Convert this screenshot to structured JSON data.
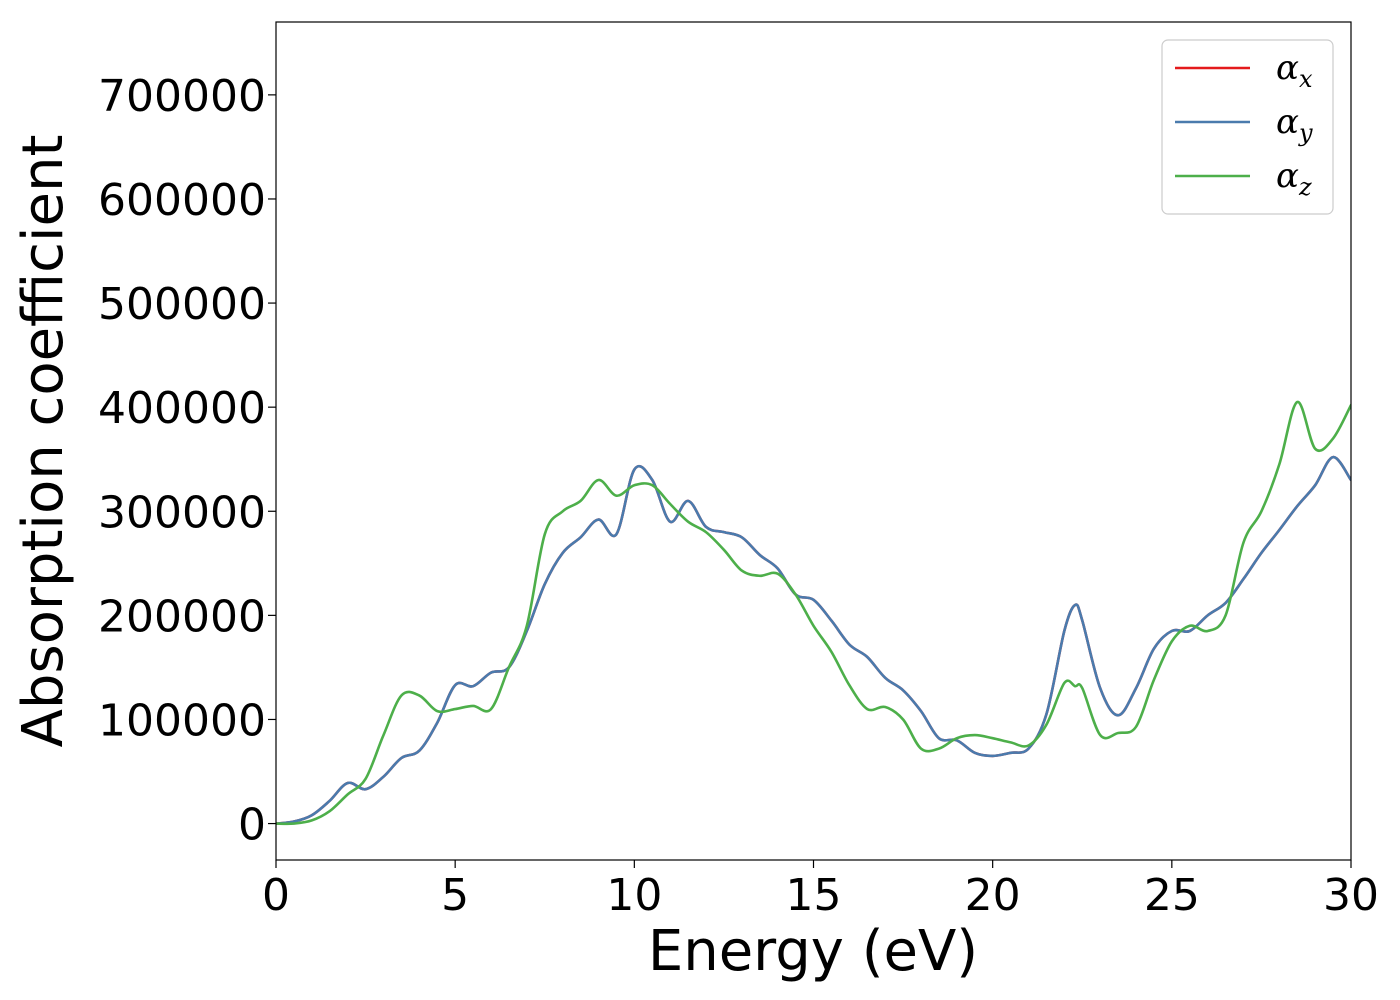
{
  "chart_data": {
    "type": "line",
    "xlabel": "Energy (eV)",
    "ylabel": "Absorption coefficient",
    "xlim": [
      0,
      30
    ],
    "ylim": [
      -35000,
      770000
    ],
    "xticks": [
      "0",
      "5",
      "10",
      "15",
      "20",
      "25",
      "30"
    ],
    "yticks": [
      "0",
      "100000",
      "200000",
      "300000",
      "400000",
      "500000",
      "600000",
      "700000"
    ],
    "grid": false,
    "legend_position": "top-right",
    "series": [
      {
        "name": "αx",
        "symbol": "α",
        "subscript": "x",
        "color": "#e41a1c",
        "x": [
          0,
          0.5,
          1,
          1.5,
          2,
          2.5,
          3,
          3.5,
          4,
          4.5,
          5,
          5.5,
          6,
          6.5,
          7,
          7.5,
          8,
          8.5,
          9,
          9.5,
          10,
          10.5,
          11,
          11.5,
          12,
          12.5,
          13,
          13.5,
          14,
          14.5,
          15,
          15.5,
          16,
          16.5,
          17,
          17.5,
          18,
          18.5,
          19,
          19.5,
          20,
          20.5,
          21,
          21.5,
          22,
          22.3,
          22.5,
          23,
          23.5,
          24,
          24.5,
          25,
          25.5,
          26,
          26.5,
          27,
          27.5,
          28,
          28.5,
          29,
          29.5,
          30
        ],
        "y": [
          0,
          2000,
          8000,
          22000,
          39000,
          33000,
          45000,
          63000,
          70000,
          97000,
          133000,
          132000,
          145000,
          150000,
          185000,
          230000,
          260000,
          275000,
          292000,
          278000,
          340000,
          330000,
          290000,
          310000,
          285000,
          280000,
          275000,
          258000,
          245000,
          220000,
          215000,
          195000,
          172000,
          160000,
          140000,
          128000,
          108000,
          82000,
          80000,
          68000,
          65000,
          68000,
          72000,
          105000,
          185000,
          210000,
          195000,
          130000,
          104000,
          130000,
          168000,
          185000,
          185000,
          200000,
          212000,
          235000,
          260000,
          282000,
          305000,
          325000,
          352000,
          330000
        ]
      },
      {
        "name": "αy",
        "symbol": "α",
        "subscript": "y",
        "color": "#4a7bad",
        "x": [
          0,
          0.5,
          1,
          1.5,
          2,
          2.5,
          3,
          3.5,
          4,
          4.5,
          5,
          5.5,
          6,
          6.5,
          7,
          7.5,
          8,
          8.5,
          9,
          9.5,
          10,
          10.5,
          11,
          11.5,
          12,
          12.5,
          13,
          13.5,
          14,
          14.5,
          15,
          15.5,
          16,
          16.5,
          17,
          17.5,
          18,
          18.5,
          19,
          19.5,
          20,
          20.5,
          21,
          21.5,
          22,
          22.3,
          22.5,
          23,
          23.5,
          24,
          24.5,
          25,
          25.5,
          26,
          26.5,
          27,
          27.5,
          28,
          28.5,
          29,
          29.5,
          30
        ],
        "y": [
          0,
          2000,
          8000,
          22000,
          39000,
          33000,
          45000,
          63000,
          70000,
          97000,
          133000,
          132000,
          145000,
          150000,
          185000,
          230000,
          260000,
          275000,
          292000,
          278000,
          340000,
          330000,
          290000,
          310000,
          285000,
          280000,
          275000,
          258000,
          245000,
          220000,
          215000,
          195000,
          172000,
          160000,
          140000,
          128000,
          108000,
          82000,
          80000,
          68000,
          65000,
          68000,
          72000,
          105000,
          185000,
          210000,
          195000,
          130000,
          104000,
          130000,
          168000,
          185000,
          185000,
          200000,
          212000,
          235000,
          260000,
          282000,
          305000,
          325000,
          352000,
          330000
        ]
      },
      {
        "name": "αz",
        "symbol": "α",
        "subscript": "z",
        "color": "#4daf4a",
        "x": [
          0,
          0.5,
          1,
          1.5,
          2,
          2.5,
          3,
          3.5,
          4,
          4.5,
          5,
          5.5,
          6,
          6.5,
          7,
          7.5,
          8,
          8.5,
          9,
          9.5,
          10,
          10.5,
          11,
          11.5,
          12,
          12.5,
          13,
          13.5,
          14,
          14.5,
          15,
          15.5,
          16,
          16.5,
          17,
          17.5,
          18,
          18.5,
          19,
          19.5,
          20,
          20.5,
          21,
          21.5,
          22,
          22.3,
          22.5,
          23,
          23.5,
          24,
          24.5,
          25,
          25.5,
          26,
          26.5,
          27,
          27.5,
          28,
          28.5,
          29,
          29.5,
          30
        ],
        "y": [
          0,
          0,
          3000,
          12000,
          28000,
          43000,
          85000,
          123000,
          123000,
          108000,
          110000,
          113000,
          110000,
          150000,
          190000,
          278000,
          300000,
          310000,
          330000,
          315000,
          325000,
          325000,
          307000,
          290000,
          280000,
          263000,
          243000,
          238000,
          240000,
          220000,
          190000,
          165000,
          133000,
          110000,
          112000,
          100000,
          72000,
          72000,
          82000,
          85000,
          82000,
          78000,
          75000,
          95000,
          135000,
          132000,
          130000,
          85000,
          87000,
          93000,
          138000,
          175000,
          190000,
          185000,
          200000,
          270000,
          300000,
          345000,
          405000,
          360000,
          370000,
          402000
        ]
      }
    ]
  }
}
